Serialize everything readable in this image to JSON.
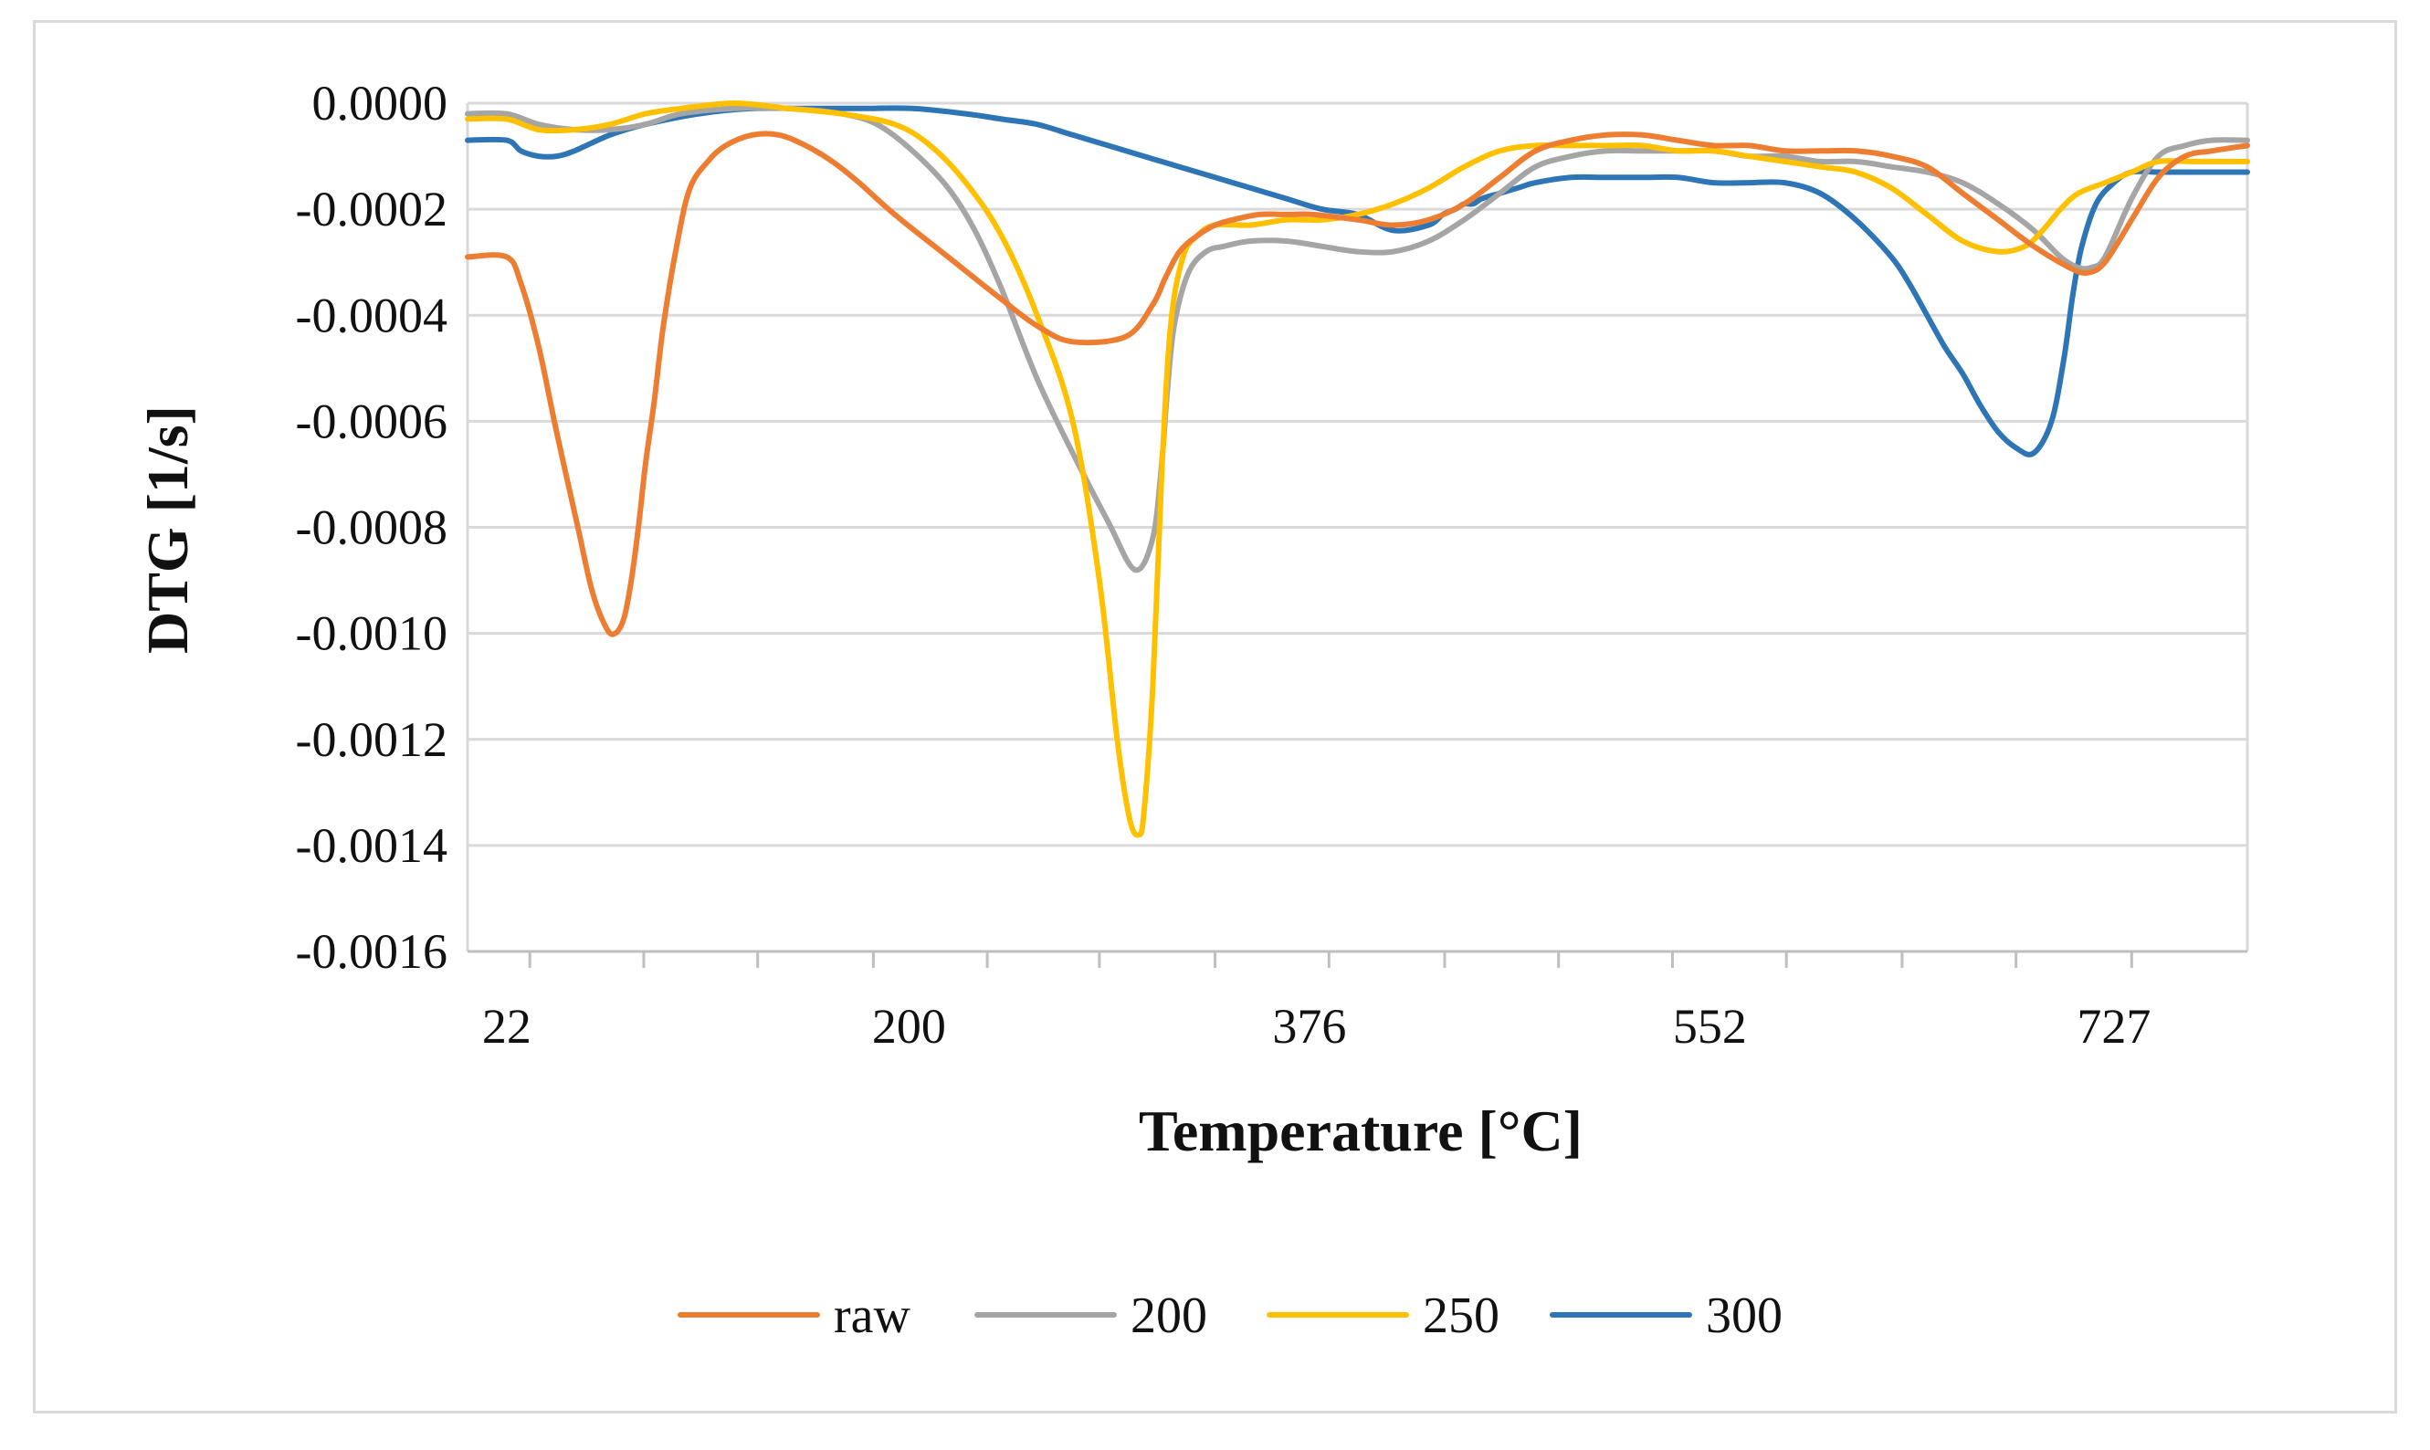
{
  "chart_data": {
    "type": "line",
    "title": "",
    "xlabel": "Temperature [°C]",
    "ylabel": "DTG [1/s]",
    "ylim": [
      -0.0016,
      0.0
    ],
    "xlim": [
      0,
      1000
    ],
    "yticks": [
      "0.0000",
      "-0.0002",
      "-0.0004",
      "-0.0006",
      "-0.0008",
      "-0.0010",
      "-0.0012",
      "-0.0014",
      "-0.0016"
    ],
    "ytick_values": [
      0.0,
      -0.0002,
      -0.0004,
      -0.0006,
      -0.0008,
      -0.001,
      -0.0012,
      -0.0014,
      -0.0016
    ],
    "xtick_labels": [
      "22",
      "200",
      "376",
      "552",
      "727"
    ],
    "xtick_label_positions": [
      22,
      248,
      473,
      698,
      925
    ],
    "xtick_mark_positions": [
      35,
      99,
      163,
      228,
      292,
      355,
      420,
      484,
      549,
      613,
      677,
      741,
      806,
      870,
      935
    ],
    "grid": true,
    "legend_position": "bottom",
    "series": [
      {
        "name": "raw",
        "color": "#ED7D31",
        "x": [
          0,
          22,
          30,
          40,
          50,
          62,
          70,
          78,
          83,
          88,
          92,
          96,
          100,
          105,
          110,
          118,
          125,
          135,
          145,
          160,
          175,
          190,
          205,
          220,
          240,
          270,
          300,
          320,
          340,
          370,
          385,
          392,
          400,
          410,
          420,
          430,
          445,
          460,
          475,
          500,
          520,
          540,
          560,
          580,
          600,
          620,
          640,
          660,
          680,
          700,
          720,
          740,
          760,
          780,
          800,
          820,
          840,
          860,
          880,
          900,
          910,
          920,
          935,
          950,
          965,
          980,
          1000
        ],
        "y": [
          -0.00029,
          -0.00029,
          -0.00034,
          -0.00046,
          -0.00062,
          -0.0008,
          -0.00092,
          -0.00099,
          -0.001,
          -0.00097,
          -0.0009,
          -0.0008,
          -0.00068,
          -0.00056,
          -0.00042,
          -0.00026,
          -0.00016,
          -0.00011,
          -8e-05,
          -6e-05,
          -6e-05,
          -8e-05,
          -0.00011,
          -0.00015,
          -0.00021,
          -0.00029,
          -0.00037,
          -0.00042,
          -0.00045,
          -0.00044,
          -0.00038,
          -0.00033,
          -0.00028,
          -0.00025,
          -0.00023,
          -0.00022,
          -0.00021,
          -0.00021,
          -0.00021,
          -0.00022,
          -0.00023,
          -0.00022,
          -0.00019,
          -0.00014,
          -9e-05,
          -7e-05,
          -6e-05,
          -6e-05,
          -7e-05,
          -8e-05,
          -8e-05,
          -9e-05,
          -9e-05,
          -9e-05,
          -0.0001,
          -0.00012,
          -0.00017,
          -0.00022,
          -0.00027,
          -0.00031,
          -0.00032,
          -0.0003,
          -0.00022,
          -0.00014,
          -0.0001,
          -9e-05,
          -8e-05
        ]
      },
      {
        "name": "200",
        "color": "#A5A5A5",
        "x": [
          0,
          22,
          40,
          60,
          80,
          100,
          120,
          150,
          180,
          210,
          230,
          250,
          270,
          285,
          300,
          320,
          340,
          360,
          375,
          385,
          390,
          393,
          397,
          405,
          415,
          425,
          440,
          460,
          480,
          500,
          520,
          540,
          560,
          580,
          600,
          620,
          640,
          660,
          680,
          700,
          720,
          740,
          760,
          780,
          800,
          820,
          840,
          860,
          880,
          895,
          905,
          912,
          920,
          935,
          950,
          965,
          980,
          1000
        ],
        "y": [
          -2e-05,
          -2e-05,
          -4e-05,
          -5e-05,
          -5e-05,
          -4e-05,
          -2e-05,
          -1e-05,
          -1e-05,
          -2e-05,
          -4e-05,
          -9e-05,
          -0.00016,
          -0.00024,
          -0.00035,
          -0.00052,
          -0.00066,
          -0.00079,
          -0.00088,
          -0.00082,
          -0.00068,
          -0.00055,
          -0.00042,
          -0.00032,
          -0.00028,
          -0.00027,
          -0.00026,
          -0.00026,
          -0.00027,
          -0.00028,
          -0.00028,
          -0.00026,
          -0.00022,
          -0.00017,
          -0.00012,
          -0.0001,
          -9e-05,
          -9e-05,
          -9e-05,
          -9e-05,
          -0.0001,
          -0.0001,
          -0.00011,
          -0.00011,
          -0.00012,
          -0.00013,
          -0.00015,
          -0.00019,
          -0.00024,
          -0.00029,
          -0.00031,
          -0.00031,
          -0.00029,
          -0.00018,
          -0.0001,
          -8e-05,
          -7e-05,
          -7e-05
        ]
      },
      {
        "name": "250",
        "color": "#FFC000",
        "x": [
          0,
          22,
          40,
          60,
          80,
          100,
          120,
          150,
          180,
          210,
          240,
          260,
          280,
          300,
          320,
          340,
          355,
          365,
          372,
          377,
          380,
          385,
          390,
          395,
          402,
          410,
          420,
          440,
          460,
          480,
          500,
          520,
          540,
          560,
          580,
          600,
          620,
          640,
          660,
          680,
          700,
          720,
          740,
          760,
          780,
          800,
          820,
          840,
          860,
          875,
          885,
          895,
          905,
          920,
          935,
          950,
          970,
          1000
        ],
        "y": [
          -3e-05,
          -3e-05,
          -5e-05,
          -5e-05,
          -4e-05,
          -2e-05,
          -1e-05,
          0.0,
          -1e-05,
          -2e-05,
          -4e-05,
          -8e-05,
          -0.00015,
          -0.00025,
          -0.0004,
          -0.0006,
          -0.0009,
          -0.0012,
          -0.00135,
          -0.00138,
          -0.00134,
          -0.0011,
          -0.0007,
          -0.00042,
          -0.00029,
          -0.00025,
          -0.00023,
          -0.00023,
          -0.00022,
          -0.00022,
          -0.00021,
          -0.00019,
          -0.00016,
          -0.00012,
          -9e-05,
          -8e-05,
          -8e-05,
          -8e-05,
          -8e-05,
          -9e-05,
          -9e-05,
          -0.0001,
          -0.00011,
          -0.00012,
          -0.00013,
          -0.00016,
          -0.00021,
          -0.00026,
          -0.00028,
          -0.00027,
          -0.00024,
          -0.0002,
          -0.00017,
          -0.00015,
          -0.00013,
          -0.00011,
          -0.00011,
          -0.00011
        ]
      },
      {
        "name": "300",
        "color": "#2E75B6",
        "x": [
          0,
          22,
          30,
          40,
          50,
          60,
          80,
          100,
          130,
          160,
          190,
          220,
          250,
          280,
          300,
          320,
          340,
          360,
          380,
          400,
          420,
          440,
          460,
          480,
          500,
          520,
          540,
          548,
          555,
          560,
          565,
          570,
          580,
          590,
          600,
          620,
          640,
          660,
          680,
          700,
          720,
          740,
          760,
          780,
          800,
          810,
          820,
          830,
          840,
          850,
          860,
          870,
          880,
          890,
          897,
          902,
          907,
          915,
          925,
          935,
          950,
          970,
          1000
        ],
        "y": [
          -7e-05,
          -7e-05,
          -9e-05,
          -0.0001,
          -0.0001,
          -9e-05,
          -6e-05,
          -4e-05,
          -2e-05,
          -1e-05,
          -1e-05,
          -1e-05,
          -1e-05,
          -2e-05,
          -3e-05,
          -4e-05,
          -6e-05,
          -8e-05,
          -0.0001,
          -0.00012,
          -0.00014,
          -0.00016,
          -0.00018,
          -0.0002,
          -0.00021,
          -0.00024,
          -0.00023,
          -0.00021,
          -0.0002,
          -0.00019,
          -0.00019,
          -0.00018,
          -0.00017,
          -0.00016,
          -0.00015,
          -0.00014,
          -0.00014,
          -0.00014,
          -0.00014,
          -0.00015,
          -0.00015,
          -0.00015,
          -0.00017,
          -0.00022,
          -0.00029,
          -0.00034,
          -0.0004,
          -0.00046,
          -0.00051,
          -0.00057,
          -0.00062,
          -0.00065,
          -0.00066,
          -0.0006,
          -0.00048,
          -0.00036,
          -0.00027,
          -0.00019,
          -0.00015,
          -0.00013,
          -0.00013,
          -0.00013,
          -0.00013
        ]
      }
    ]
  }
}
